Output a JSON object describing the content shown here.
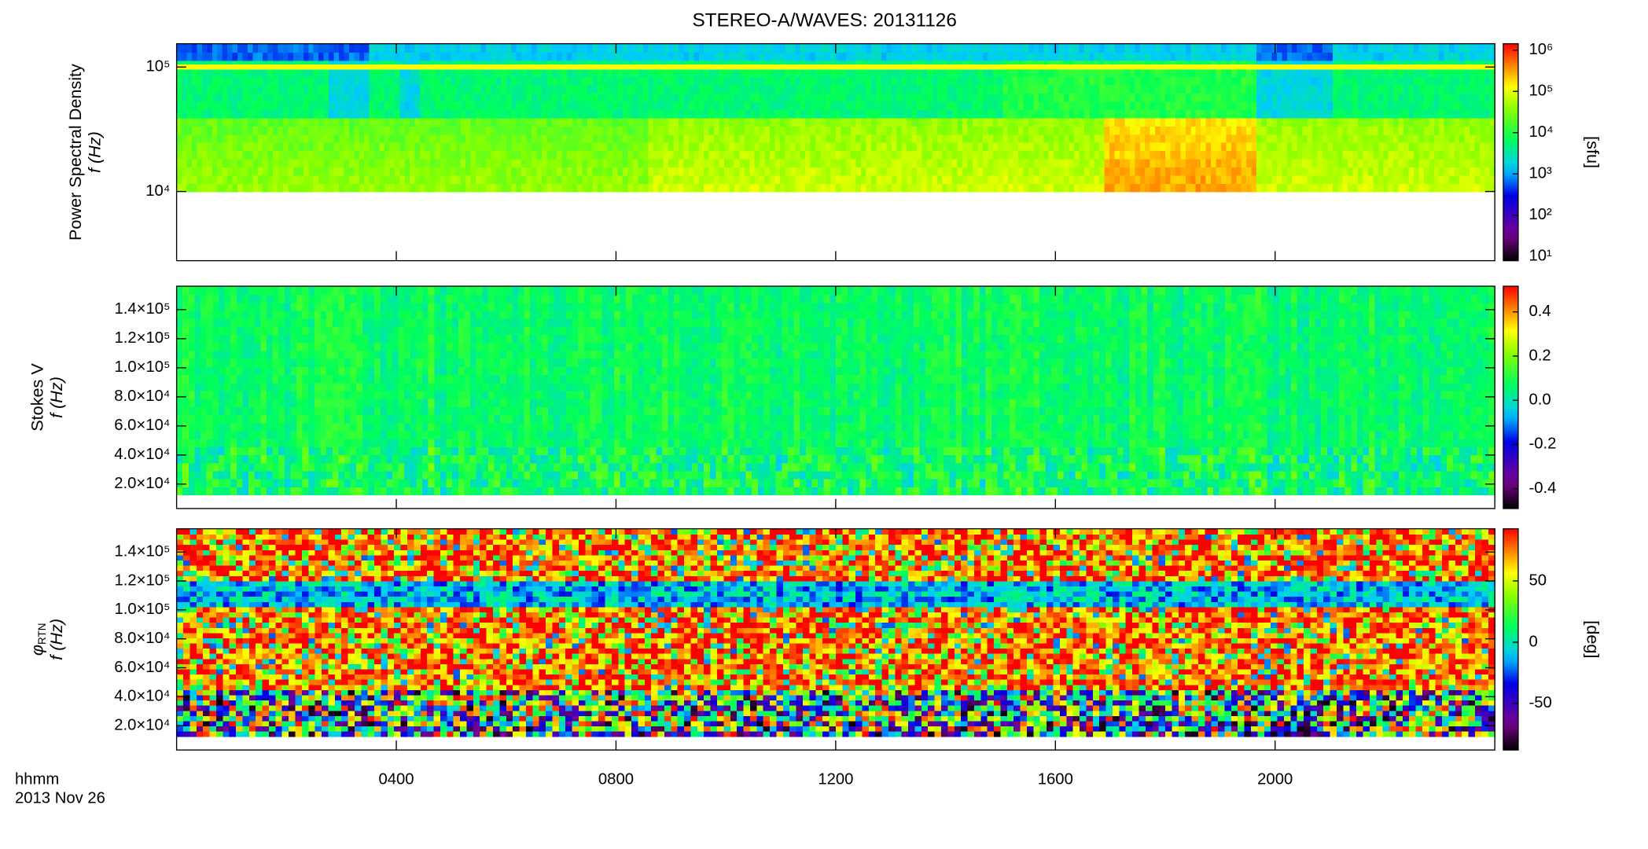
{
  "title": "STEREO-A/WAVES: 20131126",
  "x_axis": {
    "label": "hhmm",
    "date": "2013 Nov 26",
    "xlim": [
      0,
      24
    ],
    "xticks": [
      {
        "value": 4,
        "label": "0400"
      },
      {
        "value": 8,
        "label": "0800"
      },
      {
        "value": 12,
        "label": "1200"
      },
      {
        "value": 16,
        "label": "1600"
      },
      {
        "value": 20,
        "label": "2000"
      }
    ]
  },
  "chart_data": [
    {
      "type": "spectrogram",
      "ylabel": "Power Spectral Density",
      "ylabel2": "f (Hz)",
      "ylog": true,
      "ylim": [
        2780,
        154000
      ],
      "yticks": [
        {
          "value": 10000,
          "label": "10⁴"
        },
        {
          "value": 100000,
          "label": "10⁵"
        }
      ],
      "zlabel": "[sfu]",
      "zlog": true,
      "zlim": [
        7.9,
        1430000
      ],
      "zticks": [
        {
          "value": 10,
          "label": "10¹"
        },
        {
          "value": 100,
          "label": "10²"
        },
        {
          "value": 1000,
          "label": "10³"
        },
        {
          "value": 10000,
          "label": "10⁴"
        },
        {
          "value": 100000,
          "label": "10⁵"
        },
        {
          "value": 1000000,
          "label": "10⁶"
        }
      ]
    },
    {
      "type": "spectrogram",
      "ylabel": "Stokes V",
      "ylabel2": "f (Hz)",
      "ylog": false,
      "ylim": [
        3170,
        156100
      ],
      "yticks": [
        {
          "value": 20000,
          "label": "2.0×10⁴"
        },
        {
          "value": 40000,
          "label": "4.0×10⁴"
        },
        {
          "value": 60000,
          "label": "6.0×10⁴"
        },
        {
          "value": 80000,
          "label": "8.0×10⁴"
        },
        {
          "value": 100000,
          "label": "1.0×10⁵"
        },
        {
          "value": 120000,
          "label": "1.2×10⁵"
        },
        {
          "value": 140000,
          "label": "1.4×10⁵"
        }
      ],
      "zlog": false,
      "zlim": [
        -0.49,
        0.516
      ],
      "zticks": [
        -0.4,
        -0.2,
        {
          "value": 0,
          "label": "0.0"
        },
        0.2,
        0.4
      ]
    },
    {
      "type": "spectrogram",
      "ylabel": {
        "symbol": "φ",
        "subscript": "RTN"
      },
      "ylabel2": "f (Hz)",
      "ylog": false,
      "ylim": [
        3170,
        156100
      ],
      "yticks": [
        {
          "value": 20000,
          "label": "2.0×10⁴"
        },
        {
          "value": 40000,
          "label": "4.0×10⁴"
        },
        {
          "value": 60000,
          "label": "6.0×10⁴"
        },
        {
          "value": 80000,
          "label": "8.0×10⁴"
        },
        {
          "value": 100000,
          "label": "1.0×10⁵"
        },
        {
          "value": 120000,
          "label": "1.2×10⁵"
        },
        {
          "value": 140000,
          "label": "1.4×10⁵"
        }
      ],
      "zlabel": "[deg]",
      "zlog": false,
      "zlim": [
        -88,
        92.6
      ],
      "zticks": [
        -50,
        0,
        50
      ]
    }
  ]
}
